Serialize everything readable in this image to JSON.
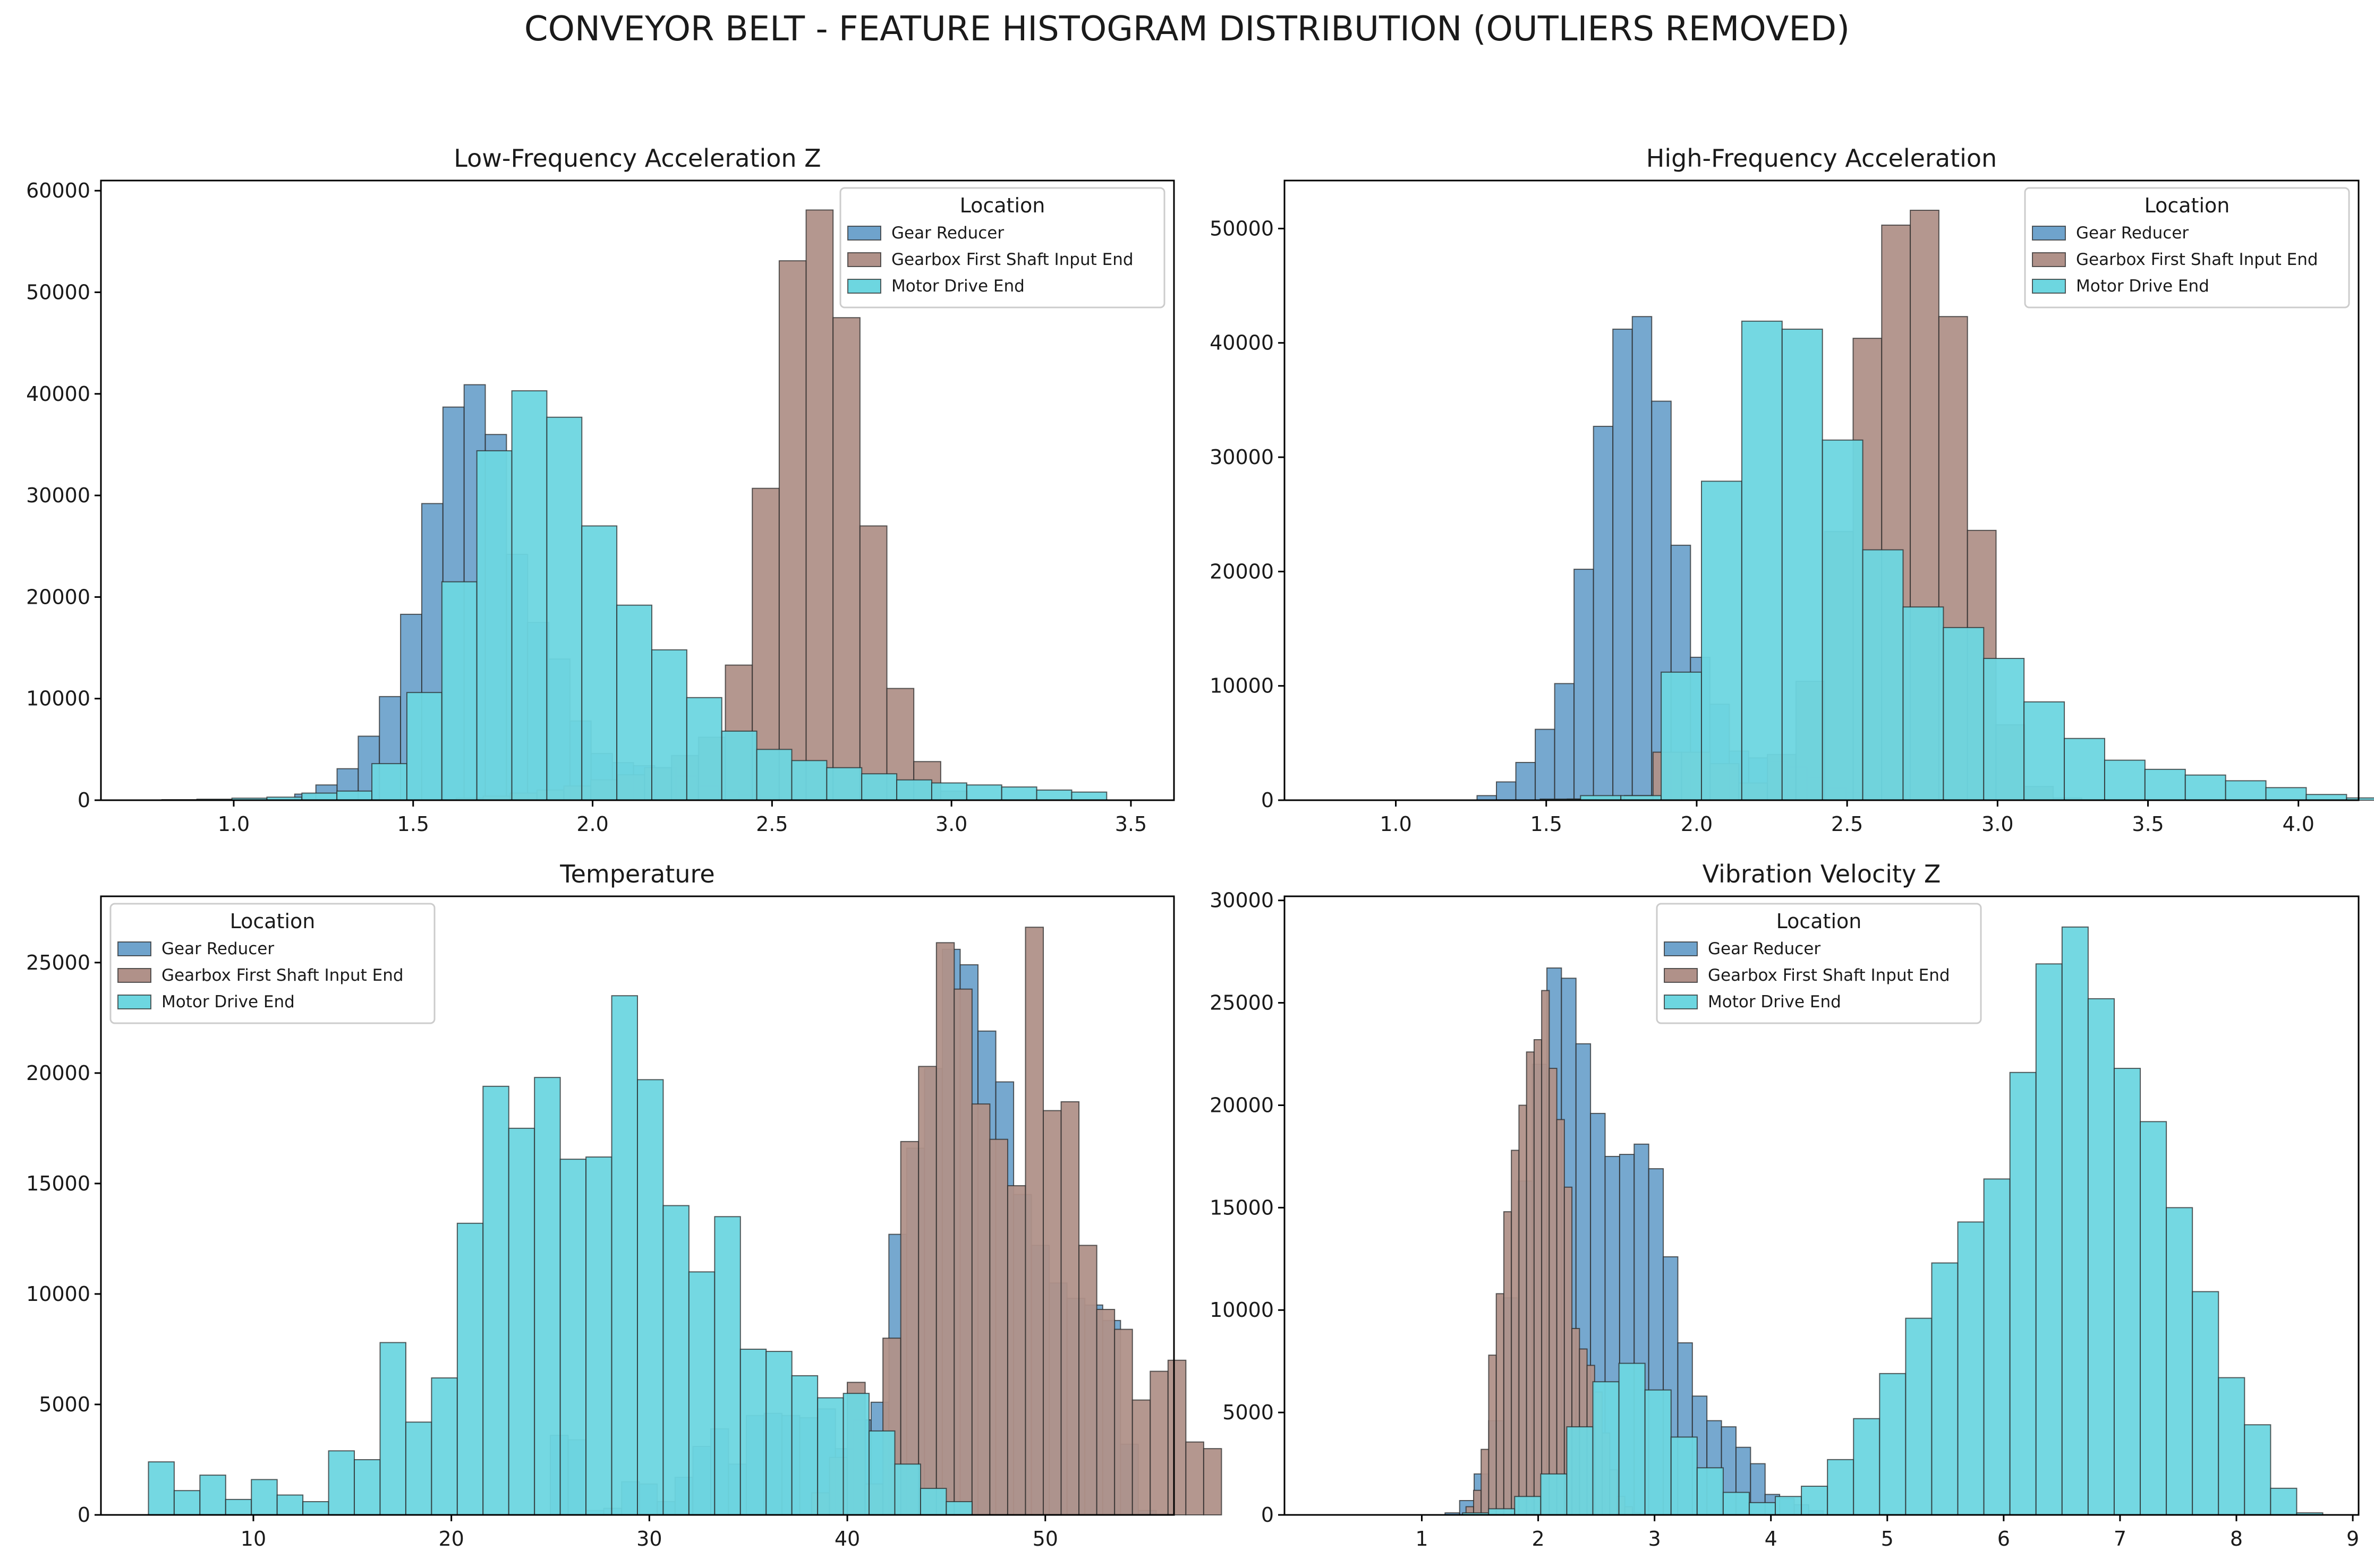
{
  "figure_title": "CONVEYOR BELT - FEATURE HISTOGRAM DISTRIBUTION (OUTLIERS REMOVED)",
  "legend_title": "Location",
  "series_colors": {
    "Gear Reducer": "#6fa3cc",
    "Gearbox First Shaft Input End": "#b09189",
    "Motor Drive End": "#6dd6e0"
  },
  "chart_data": [
    {
      "type": "histogram",
      "title": "Low-Frequency Acceleration Z",
      "xlim": [
        0.63,
        3.62
      ],
      "ylim": [
        0,
        61000
      ],
      "xticks": [
        1.0,
        1.5,
        2.0,
        2.5,
        3.0,
        3.5
      ],
      "xtick_labels": [
        "1.0",
        "1.5",
        "2.0",
        "2.5",
        "3.0",
        "3.5"
      ],
      "yticks": [
        0,
        10000,
        20000,
        30000,
        40000,
        50000,
        60000
      ],
      "legend_position": "top-right",
      "grid": false,
      "series": [
        {
          "name": "Gear Reducer",
          "start": 1.17,
          "width": 0.059,
          "values": [
            600,
            1500,
            3100,
            6300,
            10200,
            18300,
            29200,
            38700,
            40900,
            36000,
            24200,
            17500,
            13900,
            7800,
            4600,
            3700,
            3400,
            3200,
            2400,
            1400,
            900,
            500,
            300,
            100
          ]
        },
        {
          "name": "Gearbox First Shaft Input End",
          "start": 1.62,
          "width": 0.075,
          "values": [
            200,
            400,
            700,
            1000,
            1400,
            2000,
            2500,
            3200,
            4400,
            6200,
            13300,
            30700,
            53100,
            58100,
            47500,
            27000,
            11000,
            3800,
            900
          ]
        },
        {
          "name": "Motor Drive End",
          "start": 0.8,
          "width": 0.0975,
          "values": [
            50,
            100,
            200,
            300,
            700,
            900,
            3600,
            10600,
            21500,
            34400,
            40300,
            37700,
            27000,
            19200,
            14800,
            10100,
            6800,
            5000,
            3900,
            3200,
            2600,
            2000,
            1700,
            1500,
            1300,
            1000,
            800
          ]
        }
      ]
    },
    {
      "type": "histogram",
      "title": "High-Frequency Acceleration",
      "xlim": [
        0.63,
        4.2
      ],
      "ylim": [
        0,
        54200
      ],
      "xticks": [
        1.0,
        1.5,
        2.0,
        2.5,
        3.0,
        3.5,
        4.0
      ],
      "xtick_labels": [
        "1.0",
        "1.5",
        "2.0",
        "2.5",
        "3.0",
        "3.5",
        "4.0"
      ],
      "yticks": [
        0,
        10000,
        20000,
        30000,
        40000,
        50000
      ],
      "legend_position": "top-right",
      "grid": false,
      "series": [
        {
          "name": "Gear Reducer",
          "start": 1.27,
          "width": 0.0645,
          "values": [
            400,
            1600,
            3300,
            6200,
            10200,
            20200,
            32700,
            41200,
            42300,
            34900,
            22300,
            12500,
            8400,
            4300,
            3700,
            3400,
            2900,
            2000,
            1100,
            700,
            400,
            200,
            100
          ]
        },
        {
          "name": "Gearbox First Shaft Input End",
          "start": 1.57,
          "width": 0.095,
          "values": [
            100,
            200,
            400,
            4200,
            4200,
            3200,
            1500,
            4000,
            10400,
            23500,
            40400,
            50300,
            51600,
            42300,
            23600,
            6600,
            1200,
            200
          ]
        },
        {
          "name": "Motor Drive End",
          "start": 1.48,
          "width": 0.134,
          "values": [
            100,
            400,
            400,
            11200,
            27900,
            41900,
            41200,
            31500,
            21900,
            16900,
            15100,
            12400,
            8600,
            5400,
            3500,
            2700,
            2200,
            1700,
            1100,
            500,
            200
          ]
        }
      ]
    },
    {
      "type": "histogram",
      "title": "Temperature",
      "xlim": [
        2.3,
        56.5
      ],
      "ylim": [
        0,
        28000
      ],
      "xticks": [
        10,
        20,
        30,
        40,
        50
      ],
      "xtick_labels": [
        "10",
        "20",
        "30",
        "40",
        "50"
      ],
      "yticks": [
        0,
        5000,
        10000,
        15000,
        20000,
        25000
      ],
      "legend_position": "top-left",
      "grid": false,
      "series": [
        {
          "name": "Gear Reducer",
          "start": 25.0,
          "width": 0.9,
          "values": [
            3600,
            3400,
            200,
            300,
            1500,
            1400,
            600,
            1700,
            3100,
            3900,
            2300,
            4500,
            4600,
            4500,
            4400,
            4800,
            3000,
            4300,
            5100,
            12700,
            16600,
            20200,
            25600,
            24900,
            21900,
            19600,
            14500,
            12200,
            10500,
            9800,
            9500,
            8800,
            3200,
            200
          ]
        },
        {
          "name": "Gearbox First Shaft Input End",
          "start": 38.2,
          "width": 0.9,
          "values": [
            1000,
            2600,
            6000,
            1400,
            8000,
            16900,
            20300,
            25900,
            23800,
            18600,
            17000,
            14900,
            26600,
            18300,
            18700,
            12200,
            9300,
            8400,
            5200,
            6500,
            7000,
            3300,
            3000
          ]
        },
        {
          "name": "Motor Drive End",
          "start": 4.7,
          "width": 1.3,
          "values": [
            2400,
            1100,
            1800,
            700,
            1600,
            900,
            600,
            2900,
            2500,
            7800,
            4200,
            6200,
            13200,
            19400,
            17500,
            19800,
            16100,
            16200,
            23500,
            19700,
            14000,
            11000,
            13500,
            7500,
            7400,
            6300,
            5300,
            5500,
            3800,
            2300,
            1200,
            600
          ]
        }
      ]
    },
    {
      "type": "histogram",
      "title": "Vibration Velocity Z",
      "xlim": [
        -0.18,
        9.05
      ],
      "ylim": [
        0,
        30200
      ],
      "xticks": [
        1,
        2,
        3,
        4,
        5,
        6,
        7,
        8,
        9
      ],
      "xtick_labels": [
        "1",
        "2",
        "3",
        "4",
        "5",
        "6",
        "7",
        "8",
        "9"
      ],
      "yticks": [
        0,
        5000,
        10000,
        15000,
        20000,
        25000,
        30000
      ],
      "legend_position": "top-center",
      "grid": false,
      "series": [
        {
          "name": "Gear Reducer",
          "start": 1.2,
          "width": 0.125,
          "values": [
            100,
            700,
            2000,
            4600,
            10600,
            16300,
            22000,
            26700,
            26200,
            23000,
            19600,
            17500,
            17600,
            18100,
            16900,
            12600,
            8400,
            5800,
            4600,
            4300,
            3300,
            2500,
            1000,
            800,
            500,
            200
          ]
        },
        {
          "name": "Gearbox First Shaft Input End",
          "start": 1.38,
          "width": 0.065,
          "values": [
            400,
            1200,
            3200,
            7800,
            10800,
            14800,
            17800,
            20000,
            22600,
            23200,
            25600,
            21800,
            19300,
            16000,
            9100,
            8100,
            7300,
            6000,
            4000,
            2200,
            900,
            400,
            100
          ]
        },
        {
          "name": "Motor Drive End",
          "start": 1.35,
          "width": 0.224,
          "values": [
            100,
            300,
            900,
            2000,
            4300,
            6500,
            7400,
            6100,
            3800,
            2300,
            1100,
            600,
            900,
            1400,
            2700,
            4700,
            6900,
            9600,
            12300,
            14300,
            16400,
            21600,
            26900,
            28700,
            25200,
            21800,
            19200,
            15000,
            10900,
            6700,
            4400,
            1300,
            100
          ]
        }
      ]
    }
  ]
}
